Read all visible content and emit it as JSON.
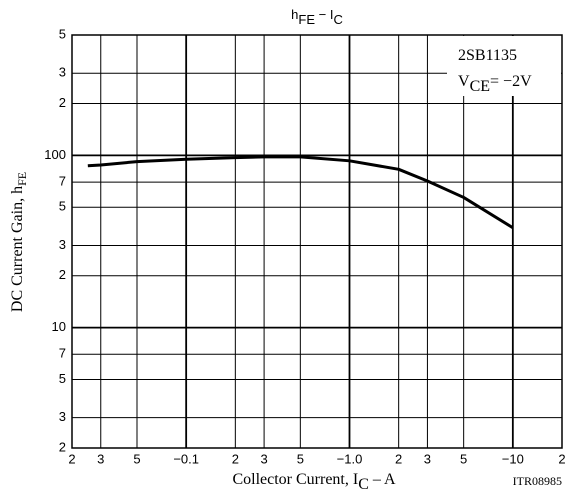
{
  "chart_data": {
    "type": "line",
    "title": [
      {
        "text": "h"
      },
      {
        "text": "FE",
        "sub": true
      },
      {
        "text": " − I"
      },
      {
        "text": "C",
        "sub": true
      }
    ],
    "xlabel": [
      {
        "text": "Collector Current, I"
      },
      {
        "text": "C",
        "sub": true
      },
      {
        "text": " – A"
      }
    ],
    "ylabel": [
      {
        "text": "DC Current Gain, h"
      },
      {
        "text": "FE",
        "sub": true
      }
    ],
    "annotations": [
      [
        {
          "text": "2SB1135"
        }
      ],
      [
        {
          "text": "V"
        },
        {
          "text": "CE",
          "sub": true
        },
        {
          "text": "= −2V"
        }
      ]
    ],
    "code": "ITR08985",
    "xscale": "log",
    "yscale": "log",
    "grid": true,
    "x": [
      -0.025,
      -0.03,
      -0.05,
      -0.1,
      -0.2,
      -0.3,
      -0.5,
      -1,
      -2,
      -3,
      -5,
      -10
    ],
    "series": [
      {
        "color": "#000000",
        "values": [
          87,
          88,
          92,
          95,
          97,
          98,
          98,
          93,
          83,
          71,
          57,
          38
        ]
      }
    ],
    "xlim": [
      -0.02,
      -20
    ],
    "xticks": [
      {
        "value": -0.02,
        "label": "2"
      },
      {
        "value": -0.03,
        "label": "3"
      },
      {
        "value": -0.05,
        "label": "5"
      },
      {
        "value": -0.1,
        "label": "−0.1"
      },
      {
        "value": -0.2,
        "label": "2"
      },
      {
        "value": -0.3,
        "label": "3"
      },
      {
        "value": -0.5,
        "label": "5"
      },
      {
        "value": -1,
        "label": "−1.0"
      },
      {
        "value": -2,
        "label": "2"
      },
      {
        "value": -3,
        "label": "3"
      },
      {
        "value": -5,
        "label": "5"
      },
      {
        "value": -10,
        "label": "−10"
      },
      {
        "value": -20,
        "label": "2"
      }
    ],
    "ylim": [
      2,
      500
    ],
    "yticks": [
      2,
      3,
      5,
      7,
      10,
      {
        "value": 20,
        "label": "2"
      },
      {
        "value": 30,
        "label": "3"
      },
      {
        "value": 50,
        "label": "5"
      },
      {
        "value": 70,
        "label": "7"
      },
      100,
      {
        "value": 200,
        "label": "2"
      },
      {
        "value": 300,
        "label": "3"
      },
      {
        "value": 500,
        "label": "5"
      }
    ]
  }
}
